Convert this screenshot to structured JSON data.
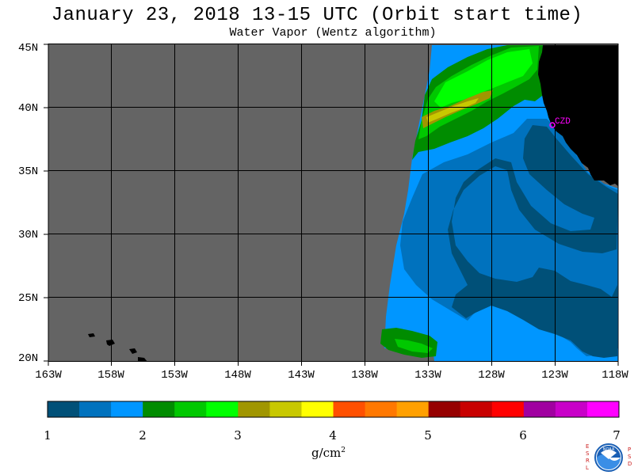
{
  "header": {
    "title": "January 23, 2018  13-15 UTC  (Orbit start time)",
    "subtitle": "Water Vapor (Wentz algorithm)"
  },
  "map": {
    "lat_labels": [
      "45N",
      "40N",
      "35N",
      "30N",
      "25N",
      "20N"
    ],
    "lon_labels": [
      "163W",
      "158W",
      "153W",
      "148W",
      "143W",
      "138W",
      "133W",
      "128W",
      "123W",
      "118W"
    ],
    "lat_range": [
      20,
      45
    ],
    "lon_range": [
      -163,
      -118
    ],
    "station_label": "CZD",
    "colors": {
      "no_data": "#646464",
      "land": "#000000",
      "gridline": "#000000",
      "station": "#ff00ff"
    }
  },
  "colorbar": {
    "tick_labels": [
      "1",
      "2",
      "3",
      "4",
      "5",
      "6",
      "7"
    ],
    "range": [
      1,
      7
    ],
    "unit_text": "g/cm",
    "unit_sup": "2",
    "colors": [
      "#005078",
      "#0072be",
      "#0096ff",
      "#008c00",
      "#00c800",
      "#00ff00",
      "#a09600",
      "#c8c800",
      "#ffff00",
      "#ff5000",
      "#ff7800",
      "#ffa000",
      "#960000",
      "#c80000",
      "#ff0000",
      "#a000a0",
      "#c800c8",
      "#ff00ff"
    ]
  },
  "logo": {
    "left_letters": [
      "E",
      "S",
      "R",
      "L"
    ],
    "right_letters": [
      "P",
      "S",
      "D"
    ],
    "center_text": "NOAA"
  }
}
